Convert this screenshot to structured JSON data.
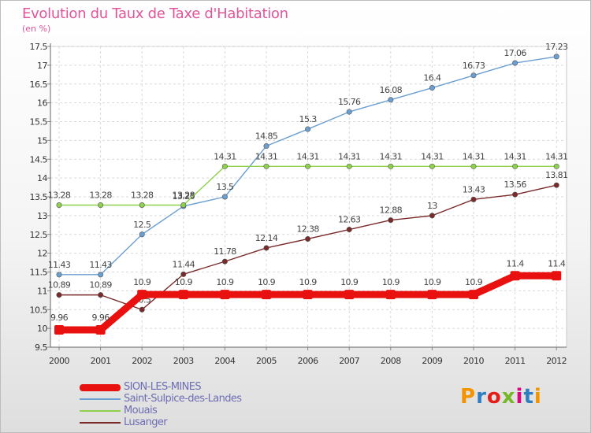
{
  "title": "Evolution du Taux de Taxe d'Habitation",
  "subtitle": "(en %)",
  "logo_text": "Proxiti",
  "logo_colors": [
    "#f29400",
    "#2f7ec1",
    "#e31d1a",
    "#78b72a",
    "#e5007e",
    "#2f7ec1",
    "#f29400"
  ],
  "chart_data": {
    "type": "line",
    "x": [
      "2000",
      "2001",
      "2002",
      "2003",
      "2004",
      "2005",
      "2006",
      "2007",
      "2008",
      "2009",
      "2010",
      "2011",
      "2012"
    ],
    "ylim": [
      9.5,
      17.5
    ],
    "yticks": [
      "9.5",
      "10",
      "10.5",
      "11",
      "11.5",
      "12",
      "12.5",
      "13",
      "13.5",
      "14",
      "14.5",
      "15",
      "15.5",
      "16",
      "16.5",
      "17",
      "17.5"
    ],
    "grid": true,
    "legend_position": "bottom-left",
    "series": [
      {
        "name": "SION-LES-MINES",
        "color": "#e8110f",
        "thick": true,
        "values": [
          9.96,
          9.96,
          10.9,
          10.9,
          10.9,
          10.9,
          10.9,
          10.9,
          10.9,
          10.9,
          10.9,
          11.4,
          11.4
        ],
        "labels": [
          "9.96",
          "9.96",
          "10.9",
          "10.9",
          "10.9",
          "10.9",
          "10.9",
          "10.9",
          "10.9",
          "10.9",
          "10.9",
          "11.4",
          "11.4"
        ]
      },
      {
        "name": "Saint-Sulpice-des-Landes",
        "color": "#6b9fd2",
        "thick": false,
        "values": [
          11.43,
          11.43,
          12.5,
          13.25,
          13.5,
          14.85,
          15.3,
          15.76,
          16.08,
          16.4,
          16.73,
          17.06,
          17.23
        ],
        "labels": [
          "11.43",
          "11.43",
          "12.5",
          "13.25",
          "13.5",
          "14.85",
          "15.3",
          "15.76",
          "16.08",
          "16.4",
          "16.73",
          "17.06",
          "17.23"
        ]
      },
      {
        "name": "Mouais",
        "color": "#8fd14f",
        "thick": false,
        "values": [
          13.28,
          13.28,
          13.28,
          13.28,
          14.31,
          14.31,
          14.31,
          14.31,
          14.31,
          14.31,
          14.31,
          14.31,
          14.31
        ],
        "labels": [
          "13.28",
          "13.28",
          "13.28",
          "13.28",
          "14.31",
          "14.31",
          "14.31",
          "14.31",
          "14.31",
          "14.31",
          "14.31",
          "14.31",
          "14.31"
        ]
      },
      {
        "name": "Lusanger",
        "color": "#7a2a2a",
        "thick": false,
        "values": [
          10.89,
          10.89,
          10.5,
          11.44,
          11.78,
          12.14,
          12.38,
          12.63,
          12.88,
          13,
          13.43,
          13.56,
          13.81
        ],
        "labels": [
          "10.89",
          "10.89",
          "10.5",
          "11.44",
          "11.78",
          "12.14",
          "12.38",
          "12.63",
          "12.88",
          "13",
          "13.43",
          "13.56",
          "13.81"
        ]
      }
    ]
  }
}
